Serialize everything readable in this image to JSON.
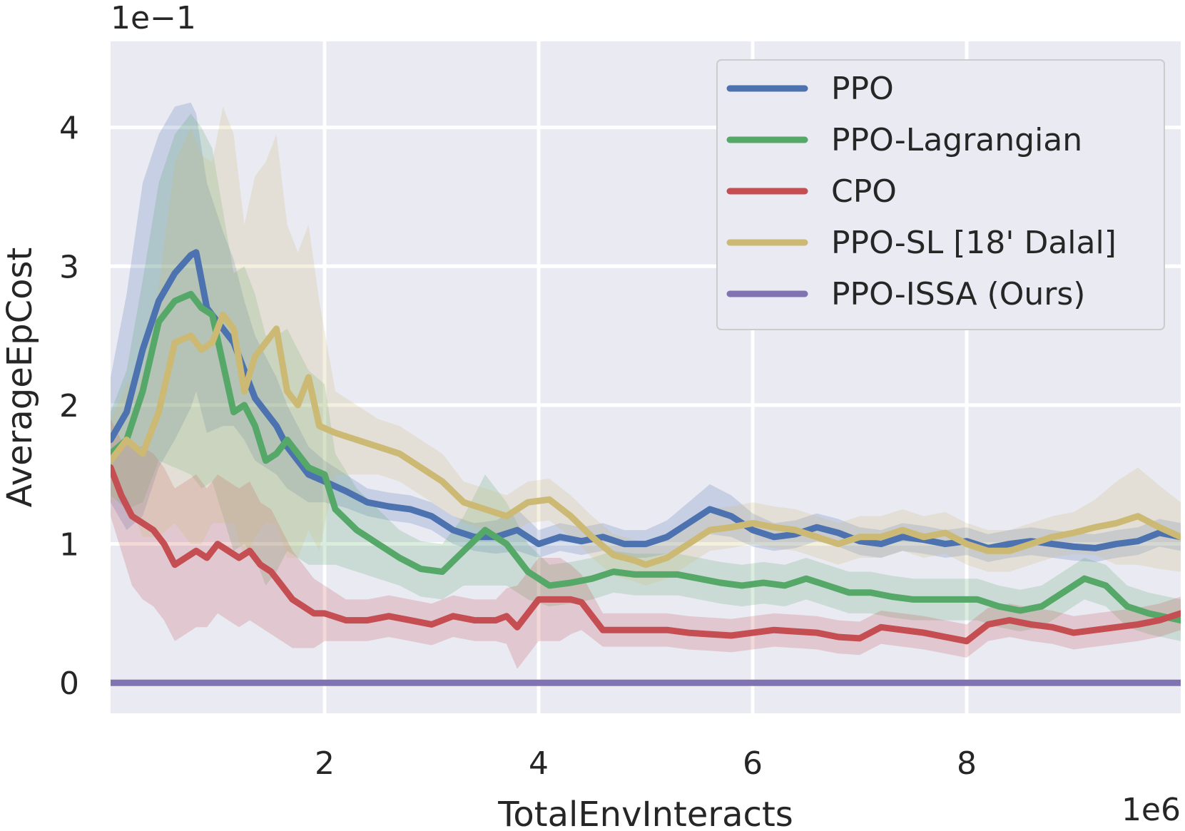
{
  "chart_data": {
    "type": "line",
    "title": "",
    "xlabel": "TotalEnvInteracts",
    "ylabel": "AverageEpCost",
    "x_offset_label": "1e6",
    "y_offset_label": "1e−1",
    "xlim": [
      0,
      10
    ],
    "ylim": [
      -0.22,
      4.62
    ],
    "x_ticks": [
      {
        "value": 2,
        "label": "2"
      },
      {
        "value": 4,
        "label": "4"
      },
      {
        "value": 6,
        "label": "6"
      },
      {
        "value": 8,
        "label": "8"
      }
    ],
    "y_ticks": [
      {
        "value": 0,
        "label": "0"
      },
      {
        "value": 1,
        "label": "1"
      },
      {
        "value": 2,
        "label": "2"
      },
      {
        "value": 3,
        "label": "3"
      },
      {
        "value": 4,
        "label": "4"
      }
    ],
    "grid": true,
    "legend_position": "top-right",
    "colors": {
      "plot_background": "#eaeaf2",
      "grid": "#ffffff",
      "legend_background": "#eaeaf2",
      "legend_border": "#cccccc"
    },
    "series": [
      {
        "name": "PPO",
        "color": "#4c72b0",
        "x": [
          0,
          0.15,
          0.3,
          0.45,
          0.6,
          0.75,
          0.8,
          0.9,
          1.05,
          1.15,
          1.25,
          1.35,
          1.45,
          1.55,
          1.65,
          1.75,
          1.85,
          2.0,
          2.2,
          2.4,
          2.6,
          2.8,
          3.0,
          3.2,
          3.4,
          3.6,
          3.8,
          4.0,
          4.2,
          4.4,
          4.6,
          4.8,
          5.0,
          5.2,
          5.4,
          5.6,
          5.8,
          6.0,
          6.2,
          6.4,
          6.6,
          6.8,
          7.0,
          7.2,
          7.4,
          7.6,
          7.8,
          8.0,
          8.2,
          8.4,
          8.6,
          8.8,
          9.0,
          9.2,
          9.4,
          9.6,
          9.8,
          10.0
        ],
        "y": [
          1.75,
          1.95,
          2.4,
          2.75,
          2.95,
          3.08,
          3.1,
          2.7,
          2.55,
          2.45,
          2.25,
          2.05,
          1.95,
          1.85,
          1.7,
          1.6,
          1.5,
          1.45,
          1.38,
          1.3,
          1.27,
          1.25,
          1.2,
          1.1,
          1.05,
          1.05,
          1.1,
          1.0,
          1.05,
          1.02,
          1.05,
          1.0,
          1.0,
          1.05,
          1.15,
          1.25,
          1.2,
          1.1,
          1.05,
          1.07,
          1.12,
          1.08,
          1.02,
          1.0,
          1.05,
          1.03,
          1.0,
          1.02,
          0.97,
          1.0,
          1.02,
          1.0,
          0.98,
          0.97,
          1.0,
          1.02,
          1.08,
          1.05
        ],
        "band": [
          0.45,
          0.85,
          1.2,
          1.2,
          1.2,
          1.1,
          1.0,
          0.9,
          0.7,
          0.6,
          0.5,
          0.45,
          0.4,
          0.35,
          0.3,
          0.25,
          0.2,
          0.15,
          0.12,
          0.1,
          0.1,
          0.1,
          0.1,
          0.1,
          0.1,
          0.12,
          0.15,
          0.1,
          0.1,
          0.1,
          0.1,
          0.1,
          0.1,
          0.12,
          0.15,
          0.18,
          0.15,
          0.12,
          0.1,
          0.1,
          0.1,
          0.1,
          0.1,
          0.1,
          0.1,
          0.1,
          0.1,
          0.1,
          0.1,
          0.1,
          0.1,
          0.1,
          0.1,
          0.1,
          0.1,
          0.1,
          0.1,
          0.1
        ]
      },
      {
        "name": "PPO-Lagrangian",
        "color": "#55a868",
        "x": [
          0,
          0.15,
          0.3,
          0.45,
          0.6,
          0.75,
          0.85,
          0.95,
          1.05,
          1.15,
          1.25,
          1.35,
          1.45,
          1.55,
          1.65,
          1.75,
          1.85,
          2.0,
          2.1,
          2.3,
          2.5,
          2.7,
          2.9,
          3.1,
          3.3,
          3.5,
          3.7,
          3.9,
          4.1,
          4.3,
          4.5,
          4.7,
          4.9,
          5.1,
          5.3,
          5.5,
          5.7,
          5.9,
          6.1,
          6.3,
          6.5,
          6.7,
          6.9,
          7.1,
          7.3,
          7.5,
          7.7,
          7.9,
          8.1,
          8.3,
          8.5,
          8.7,
          8.9,
          9.1,
          9.3,
          9.5,
          9.7,
          10.0
        ],
        "y": [
          1.65,
          1.75,
          2.1,
          2.6,
          2.75,
          2.8,
          2.7,
          2.65,
          2.3,
          1.95,
          2.0,
          1.85,
          1.6,
          1.65,
          1.75,
          1.65,
          1.55,
          1.5,
          1.25,
          1.1,
          1.0,
          0.9,
          0.82,
          0.8,
          0.95,
          1.1,
          1.0,
          0.8,
          0.7,
          0.72,
          0.75,
          0.8,
          0.78,
          0.78,
          0.78,
          0.75,
          0.72,
          0.7,
          0.72,
          0.7,
          0.75,
          0.7,
          0.65,
          0.65,
          0.62,
          0.6,
          0.6,
          0.6,
          0.6,
          0.55,
          0.52,
          0.55,
          0.65,
          0.75,
          0.7,
          0.55,
          0.5,
          0.45
        ],
        "band": [
          0.3,
          0.5,
          0.8,
          1.0,
          1.2,
          1.3,
          1.3,
          1.2,
          1.1,
          1.0,
          1.0,
          0.95,
          0.9,
          0.85,
          0.8,
          0.75,
          0.7,
          0.65,
          0.4,
          0.3,
          0.25,
          0.2,
          0.2,
          0.2,
          0.25,
          0.4,
          0.3,
          0.2,
          0.15,
          0.15,
          0.15,
          0.15,
          0.15,
          0.15,
          0.15,
          0.15,
          0.15,
          0.15,
          0.15,
          0.15,
          0.15,
          0.15,
          0.15,
          0.15,
          0.15,
          0.15,
          0.15,
          0.15,
          0.15,
          0.15,
          0.15,
          0.15,
          0.15,
          0.15,
          0.15,
          0.15,
          0.15,
          0.15
        ]
      },
      {
        "name": "CPO",
        "color": "#c44e52",
        "x": [
          0,
          0.1,
          0.2,
          0.3,
          0.4,
          0.5,
          0.6,
          0.7,
          0.8,
          0.9,
          1.0,
          1.1,
          1.2,
          1.3,
          1.4,
          1.5,
          1.6,
          1.7,
          1.8,
          1.9,
          2.0,
          2.2,
          2.4,
          2.6,
          2.8,
          3.0,
          3.2,
          3.4,
          3.6,
          3.7,
          3.8,
          4.0,
          4.2,
          4.3,
          4.4,
          4.6,
          4.8,
          5.0,
          5.2,
          5.4,
          5.6,
          5.8,
          6.0,
          6.2,
          6.4,
          6.6,
          6.8,
          7.0,
          7.2,
          7.4,
          7.6,
          7.8,
          8.0,
          8.2,
          8.4,
          8.6,
          8.8,
          9.0,
          9.2,
          9.4,
          9.6,
          9.8,
          10.0
        ],
        "y": [
          1.55,
          1.35,
          1.2,
          1.15,
          1.1,
          1.0,
          0.85,
          0.9,
          0.95,
          0.9,
          1.0,
          0.95,
          0.9,
          0.95,
          0.85,
          0.8,
          0.7,
          0.6,
          0.55,
          0.5,
          0.5,
          0.45,
          0.45,
          0.48,
          0.45,
          0.42,
          0.48,
          0.45,
          0.45,
          0.48,
          0.4,
          0.6,
          0.6,
          0.6,
          0.58,
          0.38,
          0.38,
          0.38,
          0.38,
          0.36,
          0.35,
          0.34,
          0.36,
          0.38,
          0.37,
          0.36,
          0.33,
          0.32,
          0.4,
          0.38,
          0.36,
          0.33,
          0.3,
          0.42,
          0.45,
          0.42,
          0.4,
          0.36,
          0.38,
          0.4,
          0.42,
          0.45,
          0.5
        ],
        "band": [
          0.35,
          0.4,
          0.5,
          0.55,
          0.55,
          0.55,
          0.55,
          0.55,
          0.55,
          0.5,
          0.5,
          0.5,
          0.5,
          0.5,
          0.45,
          0.45,
          0.4,
          0.35,
          0.3,
          0.25,
          0.2,
          0.15,
          0.15,
          0.15,
          0.15,
          0.15,
          0.15,
          0.15,
          0.15,
          0.2,
          0.3,
          0.3,
          0.3,
          0.25,
          0.2,
          0.12,
          0.12,
          0.12,
          0.12,
          0.12,
          0.12,
          0.12,
          0.12,
          0.12,
          0.12,
          0.12,
          0.12,
          0.12,
          0.12,
          0.12,
          0.12,
          0.12,
          0.12,
          0.12,
          0.12,
          0.12,
          0.12,
          0.12,
          0.12,
          0.12,
          0.12,
          0.12,
          0.12
        ]
      },
      {
        "name": "PPO-SL [18' Dalal]",
        "color": "#ccb974",
        "x": [
          0,
          0.15,
          0.3,
          0.45,
          0.6,
          0.75,
          0.85,
          0.95,
          1.05,
          1.15,
          1.25,
          1.35,
          1.45,
          1.55,
          1.65,
          1.75,
          1.85,
          1.95,
          2.1,
          2.3,
          2.5,
          2.7,
          2.9,
          3.1,
          3.3,
          3.5,
          3.7,
          3.9,
          4.1,
          4.3,
          4.5,
          4.7,
          4.9,
          5.0,
          5.2,
          5.4,
          5.6,
          5.8,
          6.0,
          6.2,
          6.4,
          6.6,
          6.8,
          7.0,
          7.2,
          7.4,
          7.6,
          7.8,
          8.0,
          8.2,
          8.4,
          8.6,
          8.8,
          9.0,
          9.2,
          9.4,
          9.6,
          9.8,
          10.0
        ],
        "y": [
          1.6,
          1.75,
          1.65,
          1.95,
          2.45,
          2.5,
          2.4,
          2.45,
          2.65,
          2.55,
          2.1,
          2.35,
          2.45,
          2.55,
          2.1,
          2.0,
          2.2,
          1.85,
          1.8,
          1.75,
          1.7,
          1.65,
          1.55,
          1.45,
          1.3,
          1.25,
          1.2,
          1.3,
          1.32,
          1.2,
          1.05,
          0.92,
          0.88,
          0.85,
          0.9,
          1.0,
          1.1,
          1.12,
          1.15,
          1.12,
          1.1,
          1.05,
          1.0,
          1.05,
          1.05,
          1.1,
          1.05,
          1.08,
          1.0,
          0.95,
          0.95,
          1.0,
          1.05,
          1.08,
          1.12,
          1.15,
          1.2,
          1.12,
          1.05
        ],
        "band": [
          0.3,
          0.4,
          0.6,
          0.9,
          1.3,
          1.5,
          1.4,
          1.3,
          1.5,
          1.4,
          1.2,
          1.3,
          1.3,
          1.4,
          1.2,
          1.1,
          1.1,
          0.9,
          0.3,
          0.25,
          0.2,
          0.2,
          0.2,
          0.2,
          0.15,
          0.15,
          0.15,
          0.15,
          0.15,
          0.15,
          0.15,
          0.15,
          0.15,
          0.15,
          0.15,
          0.15,
          0.15,
          0.15,
          0.15,
          0.15,
          0.15,
          0.15,
          0.15,
          0.15,
          0.15,
          0.15,
          0.15,
          0.15,
          0.15,
          0.15,
          0.15,
          0.15,
          0.15,
          0.15,
          0.2,
          0.3,
          0.35,
          0.3,
          0.25
        ]
      },
      {
        "name": "PPO-ISSA (Ours)",
        "color": "#8172b2",
        "x": [
          0,
          10
        ],
        "y": [
          0,
          0
        ],
        "band": [
          0,
          0
        ]
      }
    ]
  }
}
